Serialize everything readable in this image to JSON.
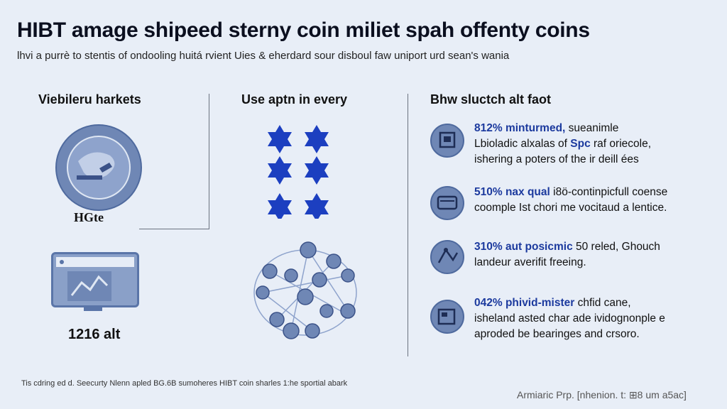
{
  "header": {
    "title": "HIBT amage shipeed sterny coin miliet spah offenty coins",
    "subtitle": "lhvi a purrè to stentis of ondooling huitá rvient Uies & eherdard sour disboul faw uniport urd sean's wania"
  },
  "left": {
    "heading": "Viebileru harkets",
    "badge_label": "HGte",
    "count_label": "1216 alt"
  },
  "middle": {
    "heading": "Use aptn in every"
  },
  "right": {
    "heading": "Bhw sluctch alt faot",
    "rows": [
      {
        "highlight": "812% minturmed,",
        "rest1": " sueanimle",
        "line2": "Lbioladic alxalas of ",
        "line2_hl": "Spc",
        "line2_end": " raf oriecole,",
        "line3": "ishering a poters of the ir deill ées"
      },
      {
        "highlight": "510% nax qual",
        "rest1": " i8ö-continpicfull coense",
        "line2": "coomple Ist chori me vocitaud a lentice.",
        "line2_hl": "",
        "line2_end": "",
        "line3": ""
      },
      {
        "highlight": "310% aut posicmic",
        "rest1": " 50 reled, Ghouch",
        "line2": "landeur averifit freeing.",
        "line2_hl": "",
        "line2_end": "",
        "line3": ""
      },
      {
        "highlight": "042% phivid-mister",
        "rest1": " chfid cane,",
        "line2": "isheland asted char ade ividognonple e",
        "line2_hl": "",
        "line2_end": "",
        "line3": "aproded be bearinges and crsoro."
      }
    ]
  },
  "footer": {
    "note": "Tis cdring ed d. Seecurty Nlenn apled BG.6B sumoheres HIBT coin sharles 1:he sportial abark",
    "credit": "Armiaric Prp. [nhenion. t: ⊞8 um a5ac]"
  },
  "colors": {
    "accent": "#1c3a9e",
    "icon_fill": "#6f87b5",
    "background": "#e8eef7"
  }
}
